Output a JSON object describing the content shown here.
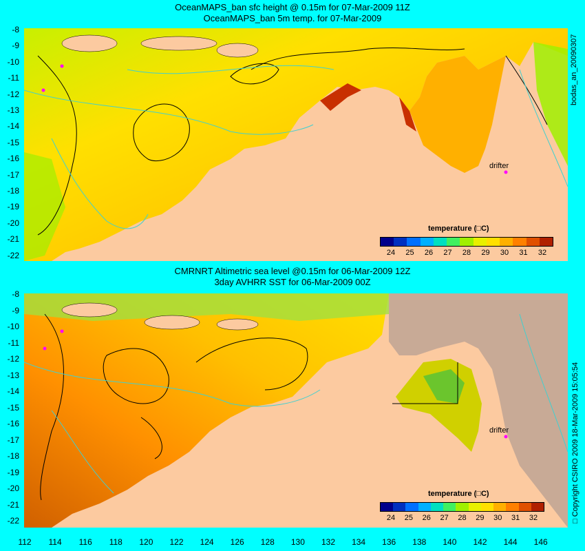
{
  "top": {
    "title_line1": "OceanMAPS_ban sfc height @ 0.15m for 07-Mar-2009 11Z",
    "title_line2": "OceanMAPS_ban 5m temp. for 07-Mar-2009",
    "side_label": "bodas_an_20090307",
    "legend_title": "temperature (□C)",
    "drifter_label": "drifter"
  },
  "bottom": {
    "title_line1": "CMRNRT Altimetric sea level  @0.15m  for 06-Mar-2009 12Z",
    "title_line2": "3day AVHRR SST for 06-Mar-2009 00Z",
    "side_label": "□ Copyright CSIRO 2009  18-Mar-2009 15:05:54",
    "legend_title": "temperature (□C)",
    "drifter_label": "drifter"
  },
  "lat_ticks": [
    "-8",
    "-9",
    "-10",
    "-11",
    "-12",
    "-13",
    "-14",
    "-15",
    "-16",
    "-17",
    "-18",
    "-19",
    "-20",
    "-21",
    "-22"
  ],
  "lon_ticks": [
    "112",
    "114",
    "116",
    "118",
    "120",
    "122",
    "124",
    "126",
    "128",
    "130",
    "132",
    "134",
    "136",
    "138",
    "140",
    "142",
    "144",
    "146"
  ],
  "colorbar_ticks": [
    "24",
    "25",
    "26",
    "27",
    "28",
    "29",
    "30",
    "31",
    "32"
  ],
  "colorbar_colors": [
    "#00008b",
    "#0030c0",
    "#0070ff",
    "#00b0ff",
    "#00e0c0",
    "#40f060",
    "#a0f000",
    "#e8f000",
    "#ffe000",
    "#ffb000",
    "#ff8000",
    "#e05000",
    "#b02000"
  ],
  "colors": {
    "background": "#00ffff",
    "land": "#fccaa0",
    "sst_warm": "#ffa500",
    "sst_cool": "#ffe000",
    "contour": "#000000",
    "bathymetry": "#40d0d0",
    "drifter": "#ff00ff",
    "nodata": "#c8aa96"
  }
}
